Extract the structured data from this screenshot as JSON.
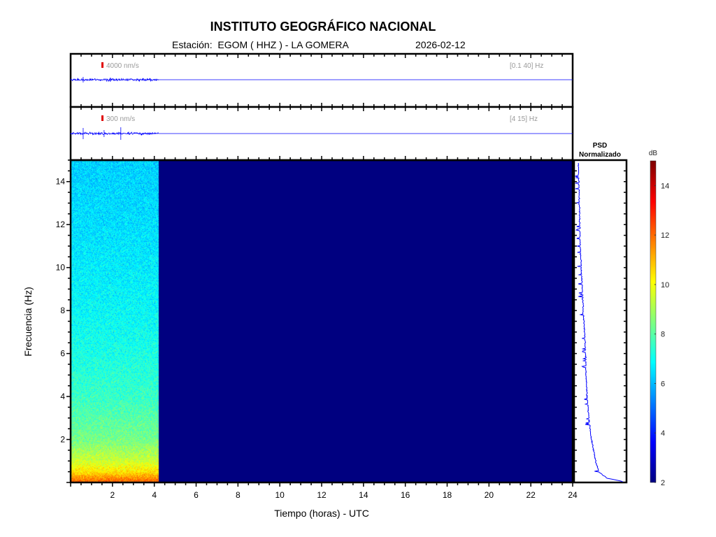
{
  "header": {
    "title": "INSTITUTO GEOGRÁFICO NACIONAL",
    "station_line": "Estación:  EGOM ( HHZ ) - LA GOMERA",
    "date": "2026-02-12"
  },
  "chart_data": [
    {
      "type": "line",
      "name": "trace-broadband",
      "scale_label": "4000 nm/s",
      "band_label": "[0.1 40] Hz",
      "data_end_hours": 4.2,
      "xlim": [
        0,
        24
      ],
      "scale_color": "#e00000",
      "line_color": "#0000ff"
    },
    {
      "type": "line",
      "name": "trace-filtered",
      "scale_label": "300 nm/s",
      "band_label": "[4 15] Hz",
      "data_end_hours": 4.2,
      "xlim": [
        0,
        24
      ],
      "scale_color": "#e00000",
      "line_color": "#0000ff"
    },
    {
      "type": "heatmap",
      "name": "spectrogram",
      "xlabel": "Tiempo (horas) - UTC",
      "ylabel": "Frecuencia  (Hz)",
      "xlim": [
        0,
        24
      ],
      "ylim": [
        0,
        15
      ],
      "xticks": [
        2,
        4,
        6,
        8,
        10,
        12,
        14,
        16,
        18,
        20,
        22,
        24
      ],
      "yticks": [
        2,
        4,
        6,
        8,
        10,
        12,
        14
      ],
      "data_end_hours": 4.2,
      "mean_db_profile": {
        "freq": [
          0.1,
          0.5,
          1,
          2,
          4,
          6,
          8,
          10,
          12,
          14.9
        ],
        "db": [
          12.0,
          10.5,
          9.5,
          8.4,
          7.6,
          7.2,
          6.9,
          6.7,
          6.5,
          6.3
        ]
      },
      "empty_db": 2
    },
    {
      "type": "line",
      "name": "psd",
      "title": "PSD\nNormalizado",
      "title_line1": "PSD",
      "title_line2": "Normalizado",
      "freq": [
        0.05,
        0.2,
        0.5,
        1,
        2,
        3,
        4,
        5,
        6,
        7,
        8,
        9,
        10,
        11,
        12,
        13,
        14,
        15
      ],
      "value": [
        0.98,
        0.65,
        0.48,
        0.42,
        0.33,
        0.28,
        0.24,
        0.22,
        0.21,
        0.19,
        0.16,
        0.14,
        0.12,
        0.1,
        0.09,
        0.08,
        0.07,
        0.06
      ]
    },
    {
      "type": "colorbar",
      "name": "colorbar",
      "label": "dB",
      "range": [
        2,
        15
      ],
      "ticks": [
        2,
        4,
        6,
        8,
        10,
        12,
        14
      ],
      "colormap": "jet"
    }
  ]
}
